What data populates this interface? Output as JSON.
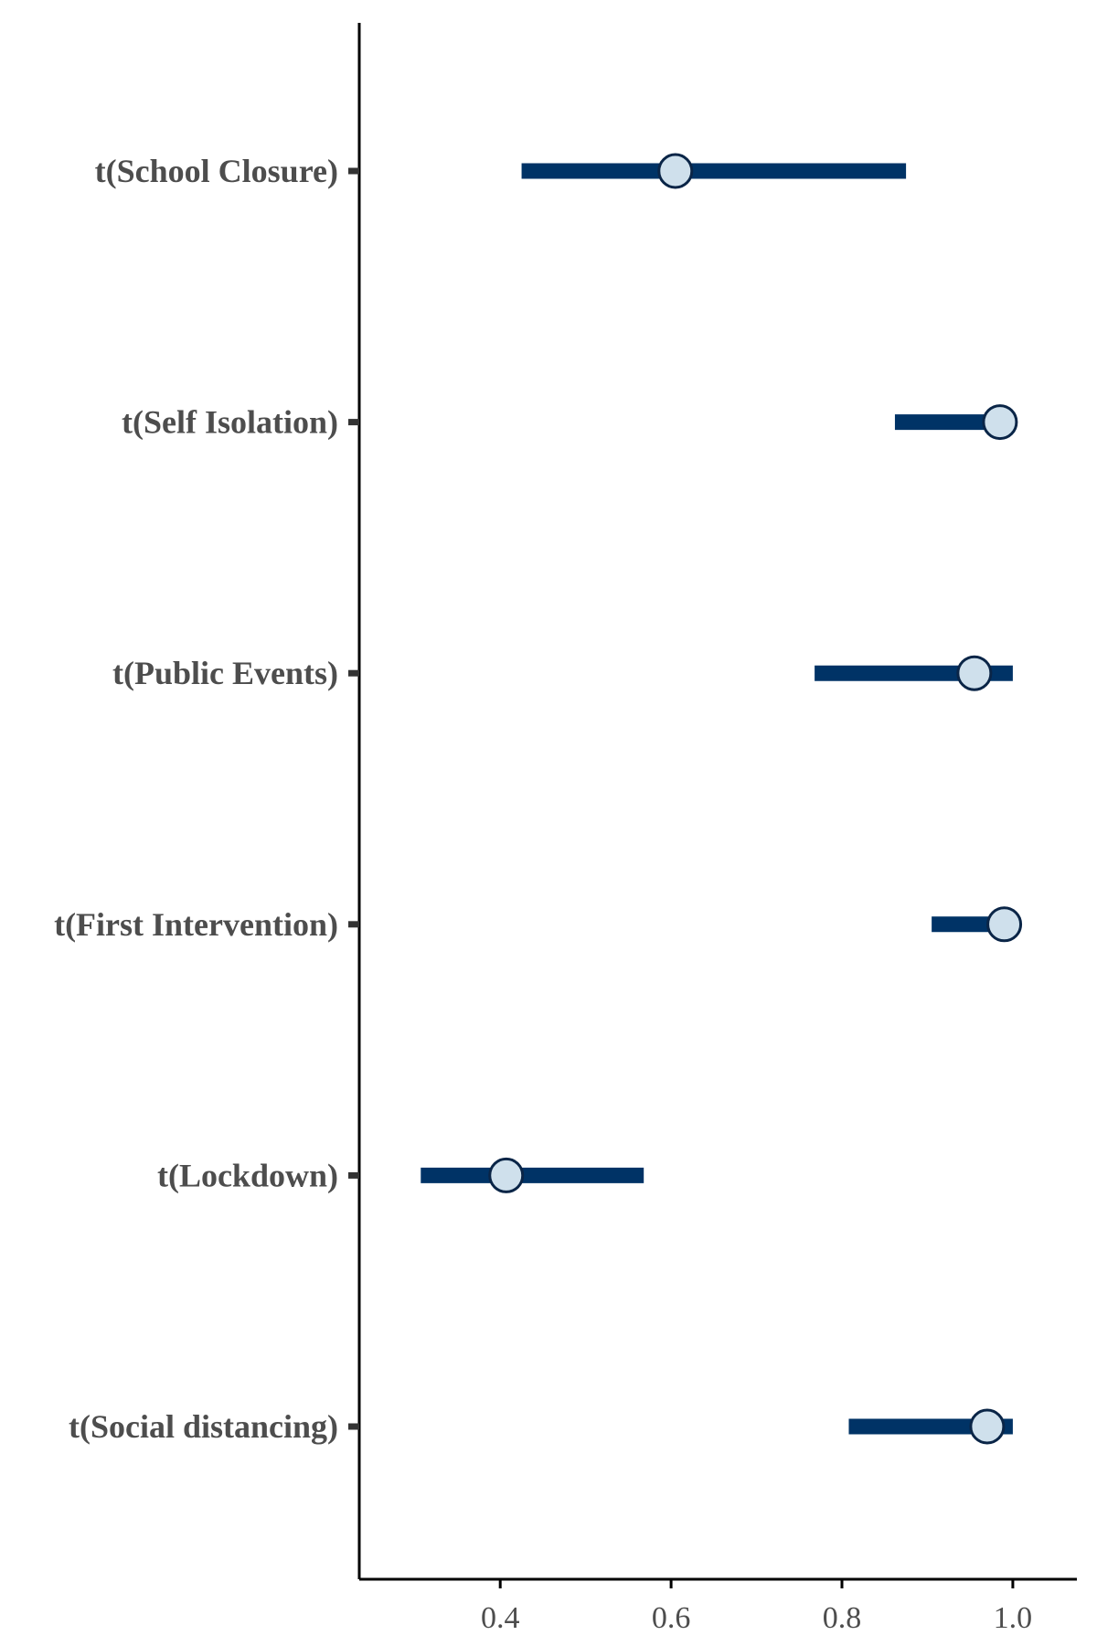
{
  "chart_data": {
    "type": "interval",
    "title": "",
    "xlabel": "",
    "ylabel": "",
    "xlim": [
      0.235,
      1.075
    ],
    "x_ticks": [
      "0.4",
      "0.6",
      "0.8",
      "1.0"
    ],
    "x_tick_values": [
      0.4,
      0.6,
      0.8,
      1.0
    ],
    "grid": false,
    "colors": {
      "interval": "#003366",
      "point_fill": "#cfe0ec",
      "point_stroke": "#0a2547",
      "axis": "#000000",
      "text": "#4d4d4d"
    },
    "categories": [
      "t(School Closure)",
      "t(Self Isolation)",
      "t(Public Events)",
      "t(First Intervention)",
      "t(Lockdown)",
      "t(Social distancing)"
    ],
    "points": [
      0.605,
      0.985,
      0.955,
      0.99,
      0.407,
      0.97
    ],
    "lower": [
      0.425,
      0.862,
      0.768,
      0.905,
      0.307,
      0.808
    ],
    "upper": [
      0.875,
      0.985,
      1.0,
      0.99,
      0.568,
      1.0
    ]
  }
}
